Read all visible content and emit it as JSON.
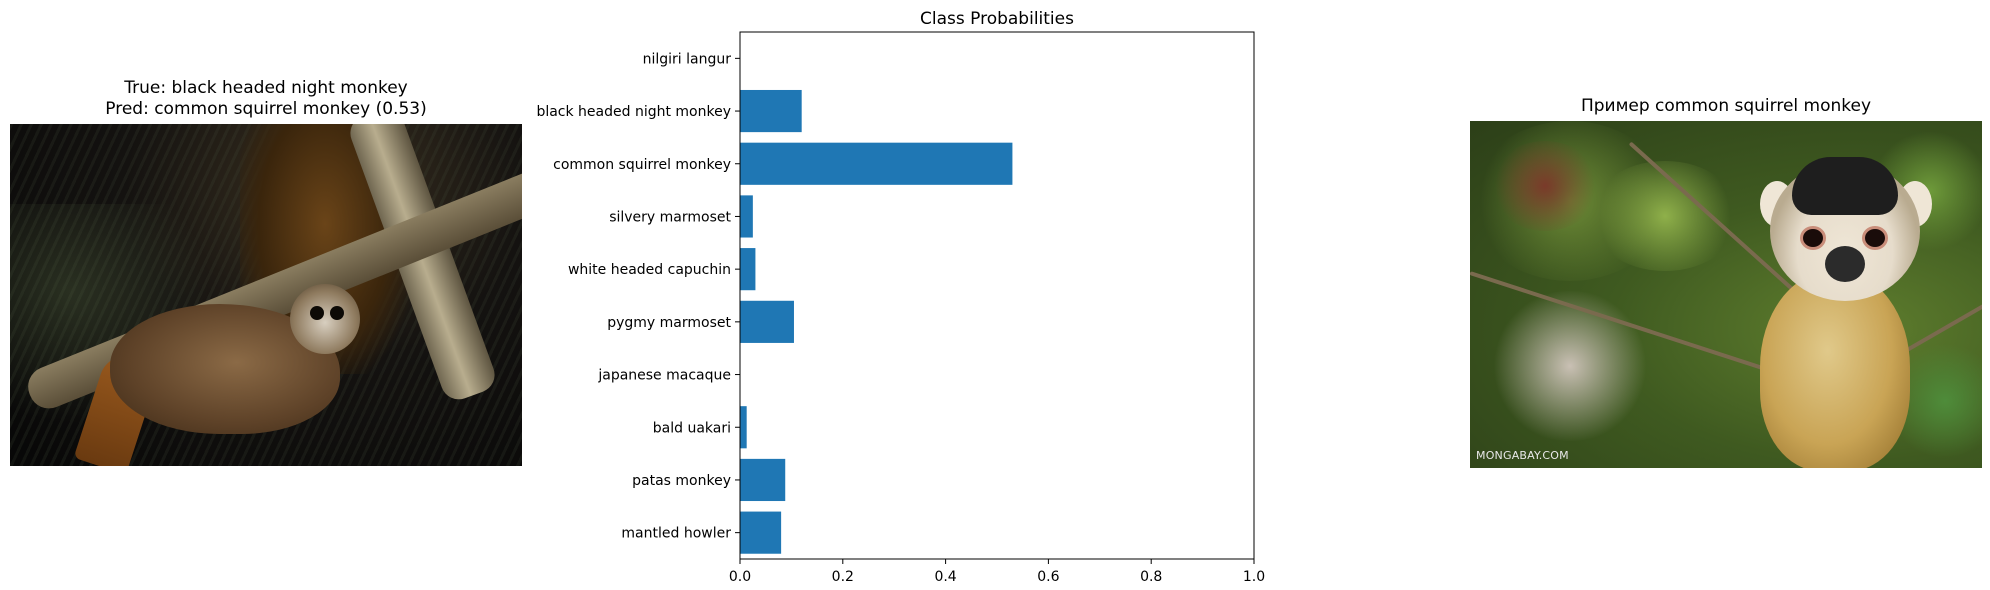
{
  "left_panel": {
    "title_true": "True: black headed night monkey",
    "title_pred": "Pred: common squirrel monkey (0.53)"
  },
  "right_panel": {
    "title": "Пример common squirrel monkey",
    "watermark": "MONGABAY.COM"
  },
  "chart_data": {
    "type": "bar",
    "orientation": "horizontal",
    "title": "Class Probabilities",
    "xlabel": "",
    "ylabel": "",
    "xlim": [
      0,
      1.0
    ],
    "x_ticks": [
      "0.0",
      "0.2",
      "0.4",
      "0.6",
      "0.8",
      "1.0"
    ],
    "categories": [
      "nilgiri langur",
      "black headed night monkey",
      "common squirrel monkey",
      "silvery marmoset",
      "white headed capuchin",
      "pygmy marmoset",
      "japanese macaque",
      "bald uakari",
      "patas monkey",
      "mantled howler"
    ],
    "values": [
      0.0,
      0.12,
      0.53,
      0.025,
      0.03,
      0.105,
      0.0,
      0.013,
      0.088,
      0.08
    ],
    "bar_color": "#1f77b4",
    "grid": false
  }
}
